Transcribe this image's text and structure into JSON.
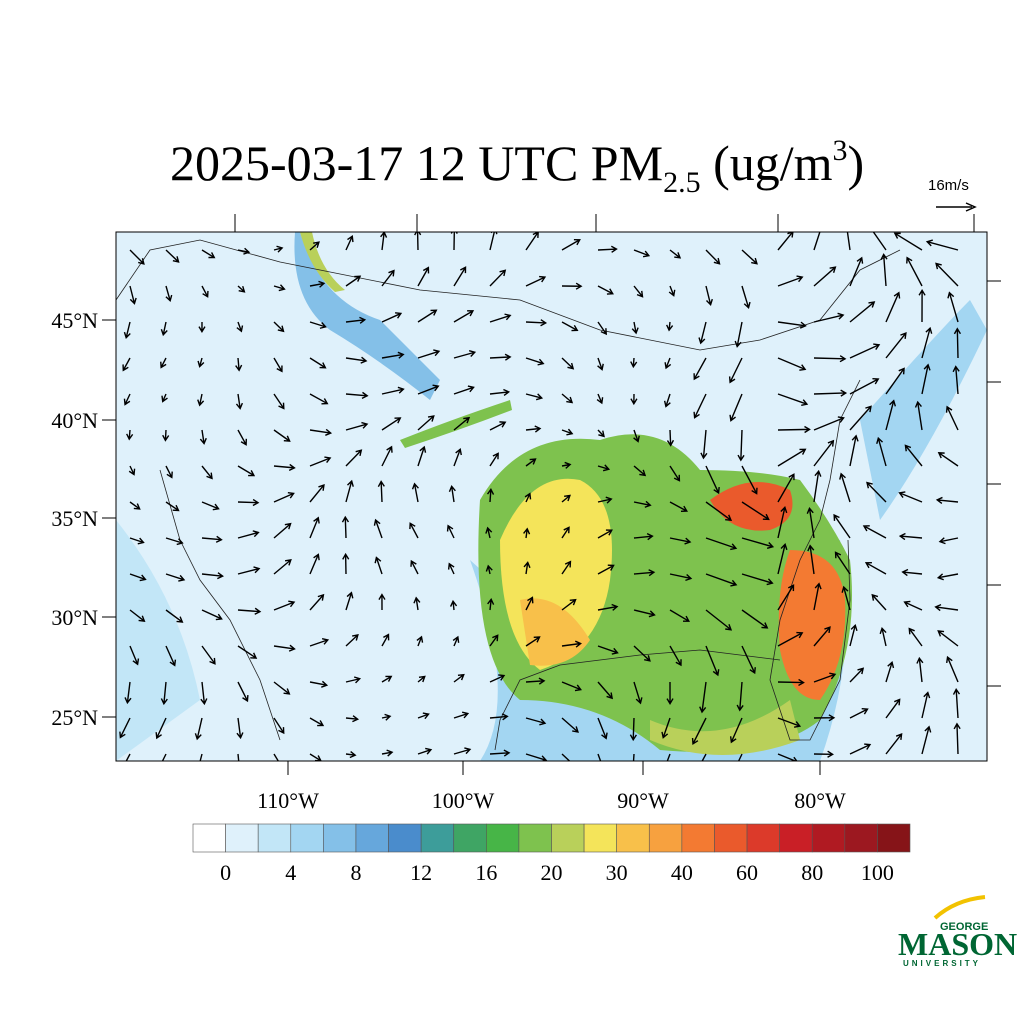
{
  "title": {
    "main": "2025-03-17 12 UTC PM",
    "subscript": "2.5",
    "unit_open": " (ug/m",
    "superscript": "3",
    "unit_close": ")"
  },
  "reference_vector": "16m/s",
  "lat_labels": [
    "45°N",
    "40°N",
    "35°N",
    "30°N",
    "25°N"
  ],
  "lon_labels": [
    "110°W",
    "100°W",
    "90°W",
    "80°W"
  ],
  "colorbar": {
    "colors": [
      "#ffffff",
      "#dff1fb",
      "#c2e6f7",
      "#a3d6f2",
      "#84c0e8",
      "#66a7dc",
      "#4a8ccc",
      "#3d9d9a",
      "#3fa564",
      "#47b547",
      "#7ec24e",
      "#b9d05a",
      "#f4e45a",
      "#f8c04a",
      "#f7a13f",
      "#f37a32",
      "#ea5a2c",
      "#dc3a2a",
      "#c91f26",
      "#b01a22",
      "#9c1820",
      "#861418"
    ],
    "labels": [
      "0",
      "4",
      "8",
      "12",
      "16",
      "20",
      "30",
      "40",
      "60",
      "80",
      "100"
    ]
  },
  "logo": {
    "top": "GEORGE",
    "name": "MASON",
    "bottom": "UNIVERSITY"
  }
}
